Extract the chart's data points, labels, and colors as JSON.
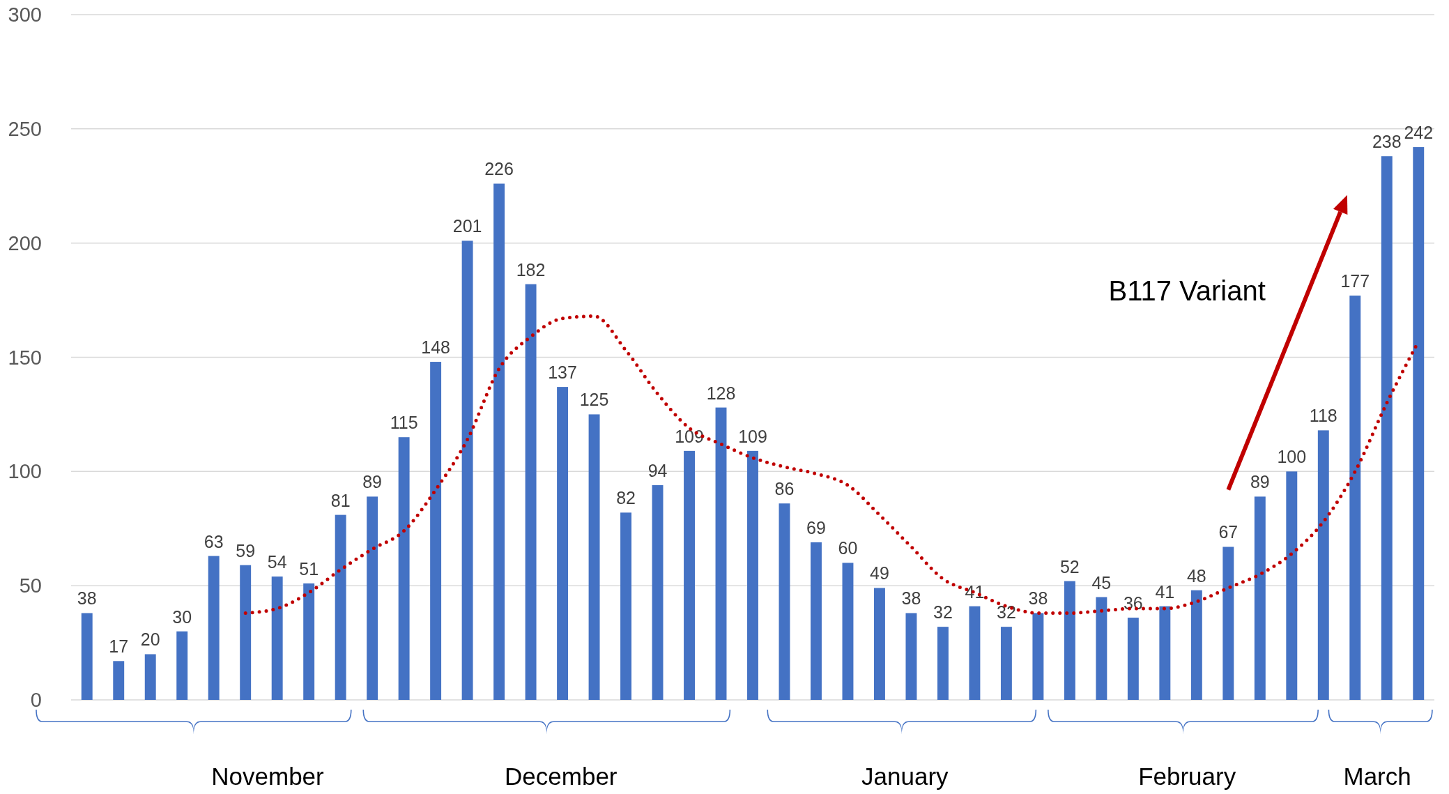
{
  "chart_data": {
    "type": "bar",
    "categories": [
      null,
      null,
      null,
      null,
      null,
      null,
      null,
      null,
      null,
      null,
      null,
      null,
      null,
      null,
      null,
      null,
      null,
      null,
      null,
      null,
      null,
      null,
      null,
      null,
      null,
      null,
      null,
      null,
      null,
      null,
      null,
      null,
      null,
      null,
      null,
      null,
      null,
      null,
      null,
      null,
      null,
      null,
      null
    ],
    "series": [
      {
        "color": "#4472c4",
        "values": [
          38,
          17,
          20,
          30,
          63,
          59,
          54,
          51,
          81,
          89,
          115,
          148,
          201,
          226,
          182,
          137,
          125,
          82,
          94,
          109,
          128,
          109,
          86,
          69,
          60,
          49,
          38,
          32,
          41,
          32,
          38,
          52,
          45,
          36,
          41,
          48,
          67,
          89,
          100,
          118,
          177,
          238,
          242
        ],
        "value_labels": [
          "38",
          "17",
          "20",
          "30",
          "63",
          "59",
          "54",
          "51",
          "81",
          "89",
          "115",
          "148",
          "201",
          "226",
          "182",
          "137",
          "125",
          "82",
          "94",
          "109",
          "128",
          "109",
          "86",
          "69",
          "60",
          "49",
          "38",
          "32",
          "41",
          "32",
          "38",
          "52",
          "45",
          "36",
          "41",
          "48",
          "67",
          "89",
          "100",
          "118",
          "177",
          "238",
          "242"
        ]
      },
      {
        "type": "line",
        "color": "#c00000",
        "line_style": "dotted",
        "marker": "none",
        "values": [
          null,
          null,
          null,
          null,
          null,
          38,
          40,
          47,
          57,
          66,
          74,
          92,
          114,
          145,
          159,
          167,
          168,
          153,
          134,
          119,
          112,
          106,
          102,
          99,
          94,
          81,
          67,
          53,
          47,
          41,
          38,
          38,
          39,
          40,
          40,
          43,
          49,
          55,
          64,
          78,
          100,
          130,
          157
        ]
      }
    ],
    "ylim": [
      0,
      300
    ],
    "yticks": [
      0,
      50,
      100,
      150,
      200,
      250,
      300
    ],
    "grid": "y",
    "annotations": [
      "B117 Variant",
      "November",
      "December",
      "January",
      "February",
      "March"
    ]
  }
}
